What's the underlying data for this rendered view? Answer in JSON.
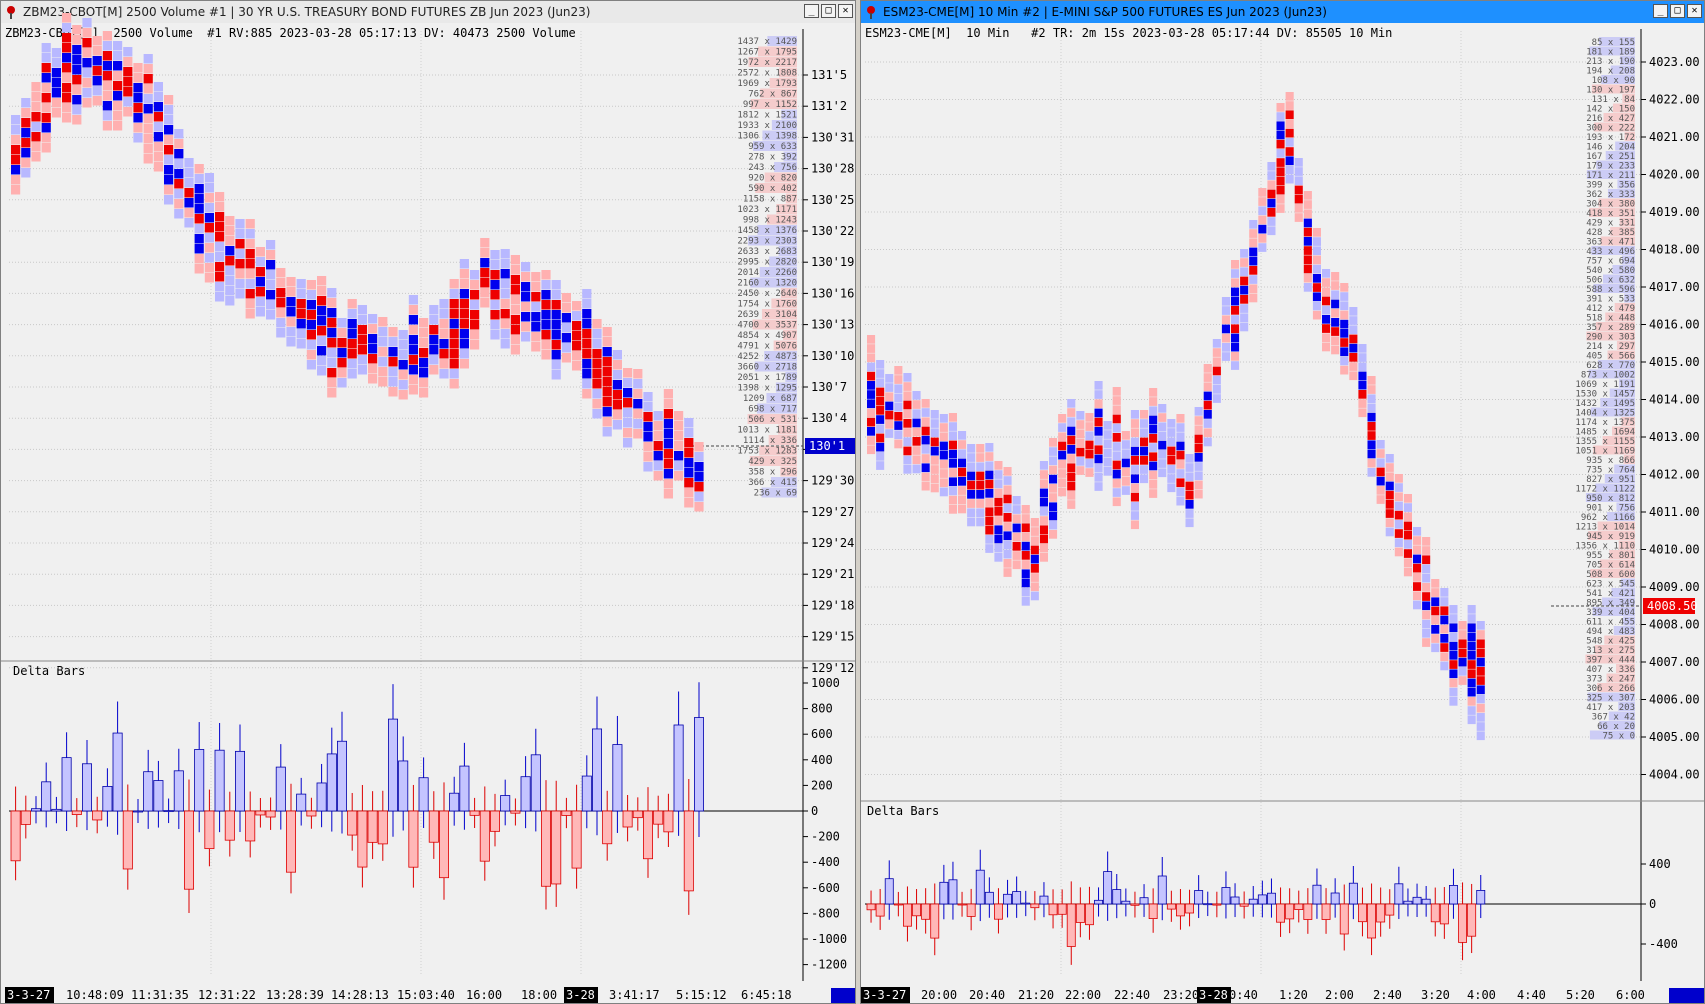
{
  "left": {
    "title": "ZBM23-CBOT[M]  2500 Volume  #1 | 30 YR U.S. TREASURY BOND FUTURES ZB Jun 2023 (Jun23)",
    "info": "ZBM23-CBOT[M]  2500 Volume  #1 RV:885 2023-03-28 05:17:13 DV: 40473 2500 Volume",
    "delta_label": "Delta Bars",
    "price_labels": [
      "131'5",
      "131'2",
      "130'31",
      "130'28",
      "130'25",
      "130'22",
      "130'19",
      "130'16",
      "130'13",
      "130'10",
      "130'7",
      "130'4",
      "130'1",
      "129'30",
      "129'27",
      "129'24",
      "129'21",
      "129'18",
      "129'15",
      "129'12"
    ],
    "current_price": "130'1",
    "delta_ticks": [
      "1000",
      "800",
      "600",
      "400",
      "200",
      "0",
      "-200",
      "-400",
      "-600",
      "-800",
      "-1000",
      "-1200"
    ],
    "x_labels": [
      "3-3-27",
      "10:48:09",
      "11:31:35",
      "12:31:22",
      "13:28:39",
      "14:28:13",
      "15:03:40",
      "16:00",
      "18:00",
      "3-28",
      "3:41:17",
      "5:15:12",
      "6:45:18"
    ],
    "dom_rows": [
      "1437 x 1429",
      "1267 x 1795",
      "1972 x 2217",
      "2572 x 1808",
      "1969 x 1793",
      "762 x 867",
      "997 x 1152",
      "1812 x 1521",
      "1933 x 2100",
      "1306 x 1398",
      "959 x 633",
      "278 x 392",
      "243 x 756",
      "920 x 820",
      "590 x 402",
      "1158 x 887",
      "1023 x 1171",
      "998 x 1243",
      "1458 x 1376",
      "2293 x 2303",
      "2633 x 2683",
      "2995 x 2820",
      "2014 x 2260",
      "2160 x 1320",
      "2450 x 2640",
      "1754 x 1760",
      "2639 x 3104",
      "4700 x 3537",
      "4854 x 4907",
      "4791 x 5076",
      "4252 x 4873",
      "3660 x 2718",
      "2051 x 1789",
      "1398 x 1295",
      "1209 x 687",
      "698 x 717",
      "506 x 531",
      "1013 x 1181",
      "1114 x 336",
      "1753 x 1283",
      "429 x 325",
      "358 x 296",
      "366 x 415",
      "236 x 69"
    ]
  },
  "right": {
    "title": "ESM23-CME[M]  10 Min  #2 | E-MINI S&P 500 FUTURES ES Jun 2023 (Jun23)",
    "info": "ESM23-CME[M]  10 Min   #2 TR: 2m 15s 2023-03-28 05:17:44 DV: 85505 10 Min",
    "delta_label": "Delta Bars",
    "price_labels": [
      "4023.00",
      "4022.00",
      "4021.00",
      "4020.00",
      "4019.00",
      "4018.00",
      "4017.00",
      "4016.00",
      "4015.00",
      "4014.00",
      "4013.00",
      "4012.00",
      "4011.00",
      "4010.00",
      "4009.00",
      "4008.00",
      "4007.00",
      "4006.00",
      "4005.00",
      "4004.00"
    ],
    "current_price": "4008.50",
    "delta_ticks": [
      "400",
      "0",
      "-400"
    ],
    "x_labels": [
      "3-3-27",
      "20:00",
      "20:40",
      "21:20",
      "22:00",
      "22:40",
      "23:20",
      "3-28",
      "0:40",
      "1:20",
      "2:00",
      "2:40",
      "3:20",
      "4:00",
      "4:40",
      "5:20",
      "6:00"
    ],
    "dom_rows": [
      "85 x 155",
      "181 x 189",
      "213 x 190",
      "194 x 208",
      "108 x 90",
      "130 x 197",
      "131 x 84",
      "142 x 150",
      "216 x 427",
      "300 x 222",
      "193 x 172",
      "146 x 204",
      "167 x 251",
      "179 x 233",
      "171 x 211",
      "399 x 356",
      "362 x 333",
      "304 x 380",
      "418 x 351",
      "429 x 331",
      "428 x 385",
      "363 x 471",
      "433 x 496",
      "757 x 694",
      "540 x 580",
      "506 x 632",
      "588 x 596",
      "391 x 533",
      "412 x 479",
      "518 x 448",
      "357 x 289",
      "290 x 303",
      "214 x 297",
      "405 x 566",
      "628 x 770",
      "873 x 1002",
      "1069 x 1191",
      "1530 x 1457",
      "1432 x 1495",
      "1404 x 1325",
      "1174 x 1375",
      "1485 x 1694",
      "1355 x 1155",
      "1051 x 1169",
      "935 x 866",
      "735 x 764",
      "827 x 951",
      "1172 x 1122",
      "950 x 812",
      "901 x 756",
      "962 x 1166",
      "1213 x 1014",
      "945 x 919",
      "1356 x 1110",
      "955 x 801",
      "705 x 614",
      "508 x 600",
      "623 x 545",
      "541 x 421",
      "895 x 349",
      "339 x 404",
      "611 x 455",
      "494 x 483",
      "548 x 425",
      "313 x 275",
      "397 x 444",
      "407 x 336",
      "373 x 247",
      "306 x 266",
      "325 x 307",
      "417 x 203",
      "367 x 42",
      "66 x 20",
      "75 x 0"
    ]
  },
  "colors": {
    "buy": "#0000ee",
    "sell": "#ee0000",
    "buy_light": "#b8b8ff",
    "sell_light": "#ffb0b0",
    "current_left": "#0000cc",
    "current_right": "#ee0000"
  }
}
